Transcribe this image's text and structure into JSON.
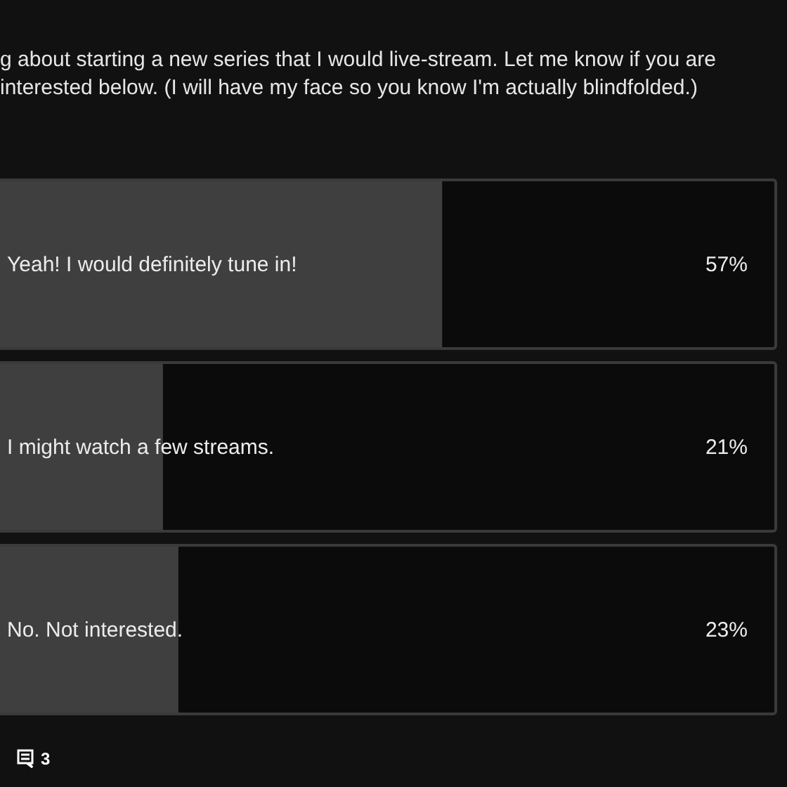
{
  "chart_data": {
    "type": "bar",
    "orientation": "horizontal",
    "title": "g about starting a new series that I would live-stream. Let me know if you are interested below. (I will have my face so you know I'm actually blindfolded.)",
    "categories": [
      "Yeah! I would definitely tune in!",
      "I might watch a few streams.",
      "No. Not interested."
    ],
    "values": [
      57,
      21,
      23
    ],
    "value_labels": [
      "57%",
      "21%",
      "23%"
    ],
    "color": "#3f3f3f",
    "xlim": [
      0,
      100
    ],
    "annotations": [
      "3"
    ]
  }
}
